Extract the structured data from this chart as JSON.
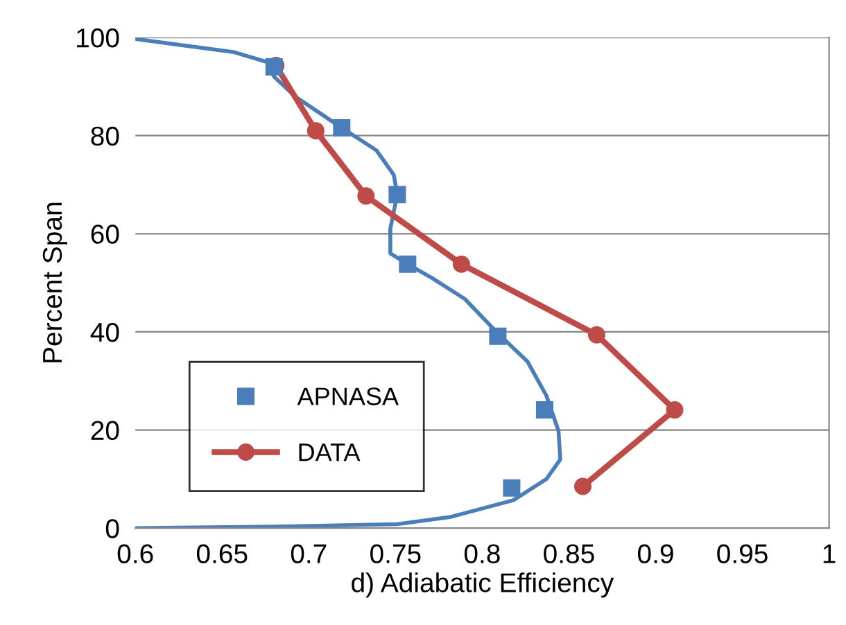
{
  "chart_data": {
    "type": "line",
    "xlabel": "d) Adiabatic Efficiency",
    "ylabel": "Percent Span",
    "xlim": [
      0.6,
      1.0
    ],
    "xticks": [
      0.6,
      0.65,
      0.7,
      0.75,
      0.8,
      0.85,
      0.9,
      0.95,
      1
    ],
    "ylim": [
      0,
      100
    ],
    "yticks": [
      0,
      20,
      40,
      60,
      80,
      100
    ],
    "grid": "y",
    "legend": "bottom left",
    "series": [
      {
        "color": "#4a7ebb",
        "marker": "none",
        "x": [
          0.6,
          0.657,
          0.676,
          0.68,
          0.692,
          0.719,
          0.739,
          0.749,
          0.751,
          0.747,
          0.747,
          0.757,
          0.771,
          0.79,
          0.809,
          0.826,
          0.837,
          0.844,
          0.845,
          0.837,
          0.818,
          0.782,
          0.751,
          0.68,
          0.6
        ],
        "values": [
          99.7,
          97,
          95,
          92,
          88,
          81.6,
          77,
          72,
          68,
          61,
          56,
          53.8,
          51,
          46.7,
          39.7,
          34,
          27,
          19.8,
          14,
          10,
          5.7,
          2.3,
          0.8,
          0.3,
          0
        ]
      },
      {
        "type": "scatter",
        "name": "APNASA",
        "color": "#4a7ebb",
        "marker": "square",
        "x": [
          0.68,
          0.719,
          0.751,
          0.757,
          0.809,
          0.836,
          0.817
        ],
        "values": [
          94,
          81.6,
          68,
          53.8,
          39.1,
          24.1,
          8.2
        ]
      },
      {
        "name": "DATA",
        "color": "#be4b48",
        "marker": "circle",
        "x": [
          0.681,
          0.704,
          0.733,
          0.788,
          0.866,
          0.911,
          0.858
        ],
        "values": [
          94.3,
          81,
          67.7,
          53.8,
          39.4,
          24.1,
          8.5
        ]
      }
    ]
  }
}
